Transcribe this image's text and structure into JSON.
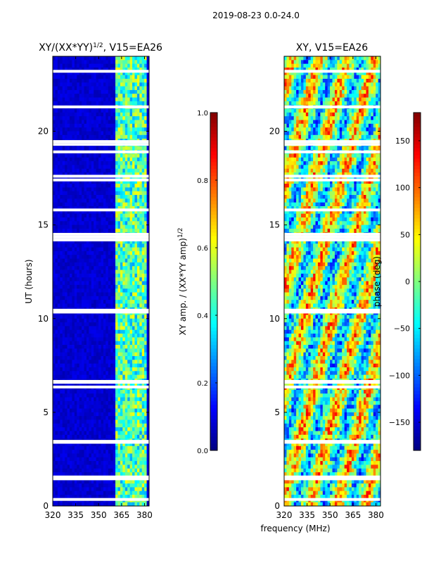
{
  "figure": {
    "suptitle": "2019-08-23 0.0-24.0",
    "xlabel": "frequency (MHz)",
    "background": "#ffffff"
  },
  "chart_data": [
    {
      "type": "heatmap",
      "title_main": "XY/(XX*YY)",
      "title_exp": "1/2",
      "title_tail": ", V15=EA26",
      "xlabel": "",
      "ylabel": "UT (hours)",
      "xlim": [
        320,
        383
      ],
      "ylim": [
        0,
        24
      ],
      "xticks": [
        320,
        335,
        350,
        365,
        380
      ],
      "yticks": [
        0,
        5,
        10,
        15,
        20
      ],
      "colorbar": {
        "label_main": "XY amp. / (XX*YY amp)",
        "label_exp": "1/2",
        "range": [
          0.0,
          1.0
        ],
        "ticks": [
          "0.0",
          "0.2",
          "0.4",
          "0.6",
          "0.8",
          "1.0"
        ],
        "colormap": "jet"
      },
      "description_values": {
        "background_level": 0.05,
        "rfi_band_mhz": [
          361,
          381
        ],
        "rfi_level": 0.45
      }
    },
    {
      "type": "heatmap",
      "title_main": "XY, V15=EA26",
      "title_exp": "",
      "title_tail": "",
      "xlabel": "",
      "ylabel": "",
      "xlim": [
        320,
        383
      ],
      "ylim": [
        0,
        24
      ],
      "xticks": [
        320,
        335,
        350,
        365,
        380
      ],
      "yticks": [
        0,
        5,
        10,
        15,
        20
      ],
      "colorbar": {
        "label_main": "phase (deg)",
        "label_exp": "",
        "range": [
          -180,
          180
        ],
        "ticks": [
          "−150",
          "−100",
          "−50",
          "0",
          "50",
          "100",
          "150"
        ],
        "colormap": "jet"
      },
      "description_values": {
        "phase_range_deg": [
          -180,
          180
        ]
      }
    }
  ],
  "flagged_gaps_hours": [
    0.35,
    1.45,
    1.55,
    3.4,
    3.45,
    6.35,
    6.6,
    6.65,
    10.35,
    10.45,
    14.2,
    14.35,
    14.5,
    15.8,
    17.4,
    17.6,
    18.9,
    19.3,
    19.45,
    21.3,
    23.2
  ],
  "colors": {
    "jet_low": "#00007f",
    "jet_high": "#7f0000",
    "frame": "#000000",
    "gap": "#ffffff"
  }
}
